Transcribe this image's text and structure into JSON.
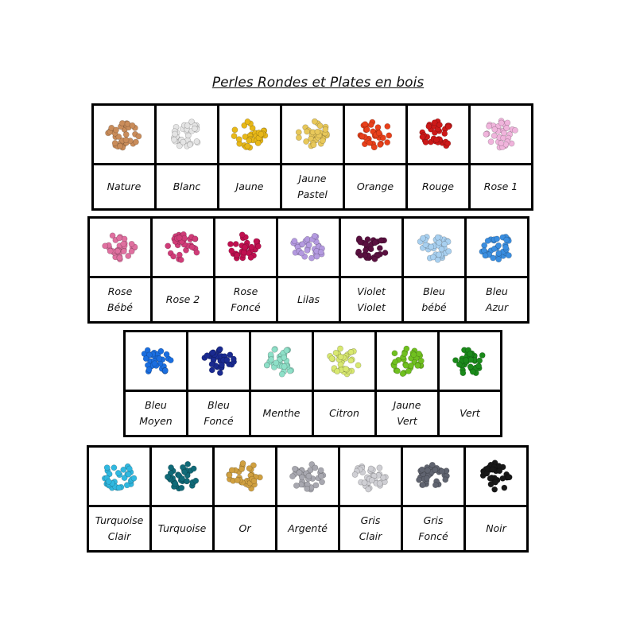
{
  "title": "Perles Rondes et Plates en bois",
  "rows": [
    [
      {
        "label": [
          "Nature"
        ],
        "color": "#c98c5a"
      },
      {
        "label": [
          "Blanc"
        ],
        "color": "#e4e4e4"
      },
      {
        "label": [
          "Jaune"
        ],
        "color": "#e8b818"
      },
      {
        "label": [
          "Jaune",
          "Pastel"
        ],
        "color": "#e8c85a"
      },
      {
        "label": [
          "Orange"
        ],
        "color": "#e8401a"
      },
      {
        "label": [
          "Rouge"
        ],
        "color": "#cc1818"
      },
      {
        "label": [
          "Rose 1"
        ],
        "color": "#f0b4dc"
      }
    ],
    [
      {
        "label": [
          "Rose",
          "Bébé"
        ],
        "color": "#e070a0"
      },
      {
        "label": [
          "Rose 2"
        ],
        "color": "#d03c78"
      },
      {
        "label": [
          "Rose",
          "Foncé"
        ],
        "color": "#c01050"
      },
      {
        "label": [
          "Lilas"
        ],
        "color": "#b49ae0"
      },
      {
        "label": [
          "Violet",
          "Violet"
        ],
        "color": "#5a1040"
      },
      {
        "label": [
          "Bleu",
          "bébé"
        ],
        "color": "#a8d0f0"
      },
      {
        "label": [
          "Bleu",
          "Azur"
        ],
        "color": "#3a8ee0"
      }
    ],
    [
      {
        "label": [
          "Bleu",
          "Moyen"
        ],
        "color": "#1a6ee0"
      },
      {
        "label": [
          "Bleu",
          "Foncé"
        ],
        "color": "#1a2a90"
      },
      {
        "label": [
          "Menthe"
        ],
        "color": "#8ee0c8"
      },
      {
        "label": [
          "Citron"
        ],
        "color": "#d8e870"
      },
      {
        "label": [
          "Jaune",
          "Vert"
        ],
        "color": "#70c020"
      },
      {
        "label": [
          "Vert"
        ],
        "color": "#1a8a1a"
      }
    ],
    [
      {
        "label": [
          "Turquoise",
          "Clair"
        ],
        "color": "#30b8e0"
      },
      {
        "label": [
          "Turquoise"
        ],
        "color": "#106a78"
      },
      {
        "label": [
          "Or"
        ],
        "color": "#d0a040"
      },
      {
        "label": [
          "Argenté"
        ],
        "color": "#a8a8b0"
      },
      {
        "label": [
          "Gris",
          "Clair"
        ],
        "color": "#cfcfd4"
      },
      {
        "label": [
          "Gris",
          "Foncé"
        ],
        "color": "#606470"
      },
      {
        "label": [
          "Noir"
        ],
        "color": "#181818"
      }
    ]
  ]
}
